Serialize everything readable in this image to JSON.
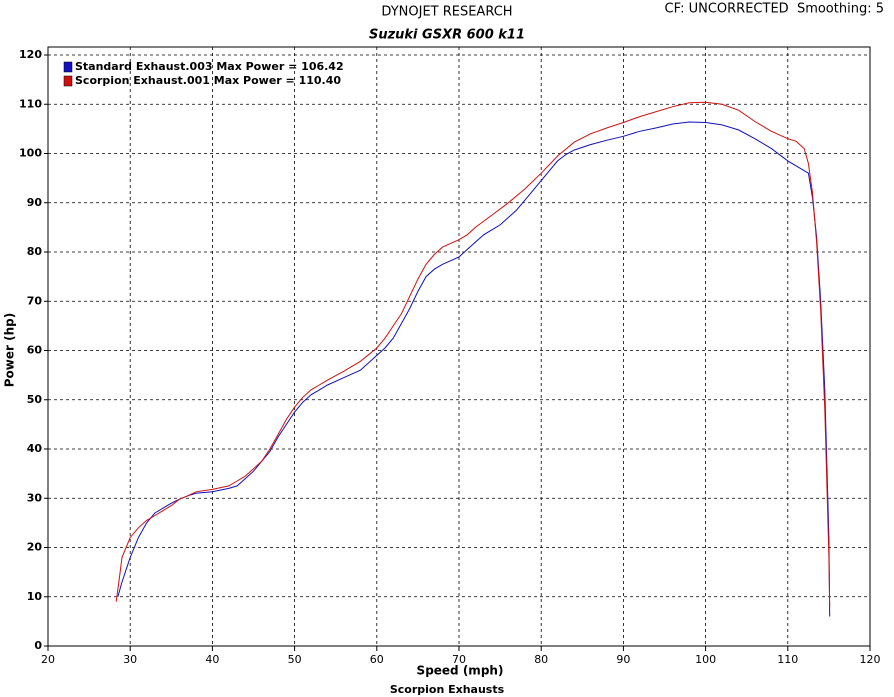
{
  "chart_data": {
    "type": "line",
    "title": "DYNOJET RESEARCH",
    "subtitle": "Suzuki GSXR 600 k11",
    "corner_note": "CF: UNCORRECTED  Smoothing: 5",
    "x_label": "Speed (mph)",
    "y_label": "Power (hp)",
    "footer": "Scorpion Exhausts",
    "xlim": [
      20,
      120
    ],
    "xticks": [
      20,
      30,
      40,
      50,
      60,
      70,
      80,
      90,
      100,
      110,
      120
    ],
    "ylim": [
      0,
      120
    ],
    "yticks": [
      0,
      10,
      20,
      30,
      40,
      50,
      60,
      70,
      80,
      90,
      100,
      110,
      120
    ],
    "grid": true,
    "legend": "top-left",
    "series": [
      {
        "name": "Standard Exhaust.003 Max Power = 106.42",
        "color": "#1010c0",
        "x": [
          28.5,
          29,
          30,
          31,
          32,
          33,
          34,
          35,
          36,
          37,
          38,
          40,
          42,
          43,
          44,
          45,
          46,
          47,
          48,
          49,
          50,
          51,
          52,
          53,
          54,
          56,
          58,
          60,
          61,
          62,
          63,
          64,
          65,
          66,
          67,
          68,
          70,
          71,
          72,
          73,
          74,
          75,
          76,
          77,
          78,
          79,
          80,
          81,
          82,
          83,
          84,
          86,
          88,
          90,
          92,
          94,
          96,
          98,
          100,
          102,
          104,
          106,
          108,
          110,
          111,
          112,
          112.5,
          113,
          113.5,
          114,
          114.5,
          115,
          115.1
        ],
        "values": [
          10,
          13,
          18,
          22,
          25,
          27,
          28,
          29,
          29.8,
          30.5,
          31,
          31.3,
          32,
          32.5,
          34,
          35.5,
          37.5,
          39.5,
          42.5,
          45,
          47.5,
          49.5,
          51,
          52,
          53,
          54.5,
          56,
          59,
          60.5,
          62.5,
          65.5,
          68.5,
          72,
          75,
          76.5,
          77.5,
          79,
          80.5,
          82,
          83.5,
          84.5,
          85.5,
          87,
          88.5,
          90.5,
          92.5,
          94.5,
          96.5,
          98.5,
          99.8,
          100.7,
          101.8,
          102.7,
          103.5,
          104.5,
          105.2,
          106,
          106.4,
          106.3,
          105.8,
          104.8,
          103,
          101,
          98.5,
          97.5,
          96.5,
          96,
          91,
          83,
          70,
          52,
          22,
          6
        ]
      },
      {
        "name": "Scorpion Exhaust.001 Max Power = 110.40",
        "color": "#d01010",
        "x": [
          28.3,
          28.7,
          29,
          30,
          31,
          32,
          33,
          34,
          35,
          36,
          37,
          38,
          40,
          42,
          43,
          44,
          45,
          46,
          47,
          48,
          49,
          50,
          51,
          52,
          53,
          54,
          56,
          58,
          60,
          61,
          62,
          63,
          64,
          65,
          66,
          67,
          68,
          70,
          71,
          72,
          74,
          76,
          78,
          80,
          82,
          84,
          86,
          88,
          90,
          92,
          94,
          96,
          98,
          100,
          102,
          104,
          106,
          108,
          110,
          111,
          112,
          112.5,
          113,
          113.5,
          114,
          114.5,
          115,
          115.1
        ],
        "values": [
          9,
          14,
          18,
          22,
          24,
          25.5,
          26.5,
          27.5,
          28.5,
          29.8,
          30.5,
          31.3,
          31.8,
          32.5,
          33.5,
          34.5,
          36,
          37.5,
          40,
          43,
          46,
          48.5,
          50.5,
          52,
          53,
          54,
          55.8,
          57.8,
          60.5,
          62.5,
          65,
          67.5,
          71,
          74.5,
          77.5,
          79.5,
          81,
          82.5,
          83.5,
          85,
          87.5,
          90,
          92.8,
          96,
          99.5,
          102.3,
          104,
          105.2,
          106.3,
          107.5,
          108.5,
          109.5,
          110.3,
          110.4,
          110,
          108.8,
          106.5,
          104.5,
          103,
          102.5,
          101,
          98,
          92,
          82,
          68,
          48,
          18,
          8
        ]
      }
    ]
  }
}
